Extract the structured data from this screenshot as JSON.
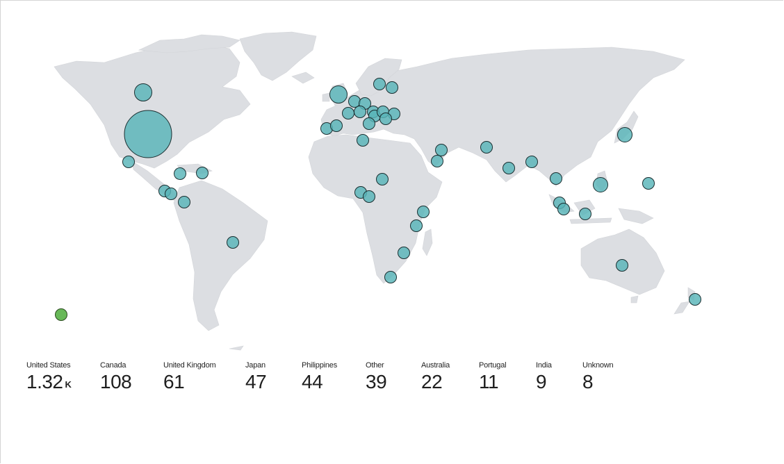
{
  "colors": {
    "bubble": "#58b5b8",
    "legend_dot": "#68b858",
    "land": "#dcdee2"
  },
  "stats": [
    {
      "label": "United States",
      "value": "1.32",
      "unit": "K"
    },
    {
      "label": "Canada",
      "value": "108",
      "unit": ""
    },
    {
      "label": "United Kingdom",
      "value": "61",
      "unit": ""
    },
    {
      "label": "Japan",
      "value": "47",
      "unit": ""
    },
    {
      "label": "Philippines",
      "value": "44",
      "unit": ""
    },
    {
      "label": "Other",
      "value": "39",
      "unit": ""
    },
    {
      "label": "Australia",
      "value": "22",
      "unit": ""
    },
    {
      "label": "Portugal",
      "value": "11",
      "unit": ""
    },
    {
      "label": "India",
      "value": "9",
      "unit": ""
    },
    {
      "label": "Unknown",
      "value": "8",
      "unit": ""
    }
  ]
}
